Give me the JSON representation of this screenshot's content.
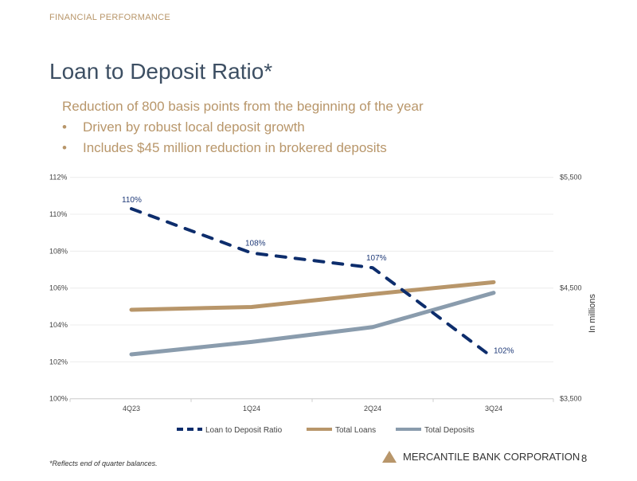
{
  "header": {
    "section": "FINANCIAL PERFORMANCE",
    "title": "Loan to Deposit Ratio*"
  },
  "summary": {
    "subtitle": "Reduction of 800 basis points from the beginning of the year",
    "bullets": [
      "Driven by robust local deposit growth",
      "Includes $45 million reduction in brokered deposits"
    ],
    "bullet_char": "•"
  },
  "chart_data": {
    "type": "line",
    "categories": [
      "4Q23",
      "1Q24",
      "2Q24",
      "3Q24"
    ],
    "y_left": {
      "ticks": [
        "100%",
        "102%",
        "104%",
        "106%",
        "108%",
        "110%",
        "112%"
      ],
      "range": [
        100,
        112
      ]
    },
    "y_right": {
      "label": "In millions",
      "ticks": [
        "$3,500",
        "$4,500",
        "$5,500"
      ],
      "range": [
        3500,
        5500
      ]
    },
    "grid": true,
    "legend_position": "bottom",
    "series": [
      {
        "name": "Loan to Deposit Ratio",
        "axis": "left",
        "values": [
          110.3,
          107.9,
          107.1,
          102.2
        ],
        "labels": [
          "110%",
          "108%",
          "107%",
          "102%"
        ],
        "color": "#0d2d6c",
        "style": "dashed"
      },
      {
        "name": "Total Loans",
        "axis": "right",
        "values": [
          4304,
          4329,
          4445,
          4553
        ],
        "color": "#b8966a",
        "style": "solid"
      },
      {
        "name": "Total Deposits",
        "axis": "right",
        "values": [
          3901,
          4013,
          4147,
          4457
        ],
        "color": "#8a9cad",
        "style": "solid"
      }
    ]
  },
  "footer": {
    "footnote": "*Reflects end of quarter balances.",
    "brand": "MERCANTILE BANK CORPORATION",
    "page": "8"
  }
}
